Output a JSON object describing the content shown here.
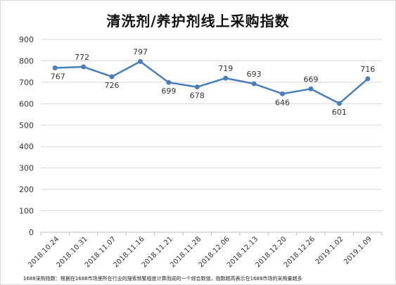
{
  "chart_data": {
    "type": "line",
    "title": "清洗剂/养护剂线上采购指数",
    "xlabel": "",
    "ylabel": "",
    "categories": [
      "2018.10.24",
      "2018.10.31",
      "2018.11.07",
      "2018.11.16",
      "2018.11.21",
      "2018.11.28",
      "2018.12.06",
      "2018.12.13",
      "2018.12.20",
      "2018.12.26",
      "2019.1.02",
      "2019.1.09"
    ],
    "values": [
      767,
      772,
      726,
      797,
      699,
      678,
      719,
      693,
      646,
      669,
      601,
      716
    ],
    "data_labels": [
      "767",
      "772",
      "726",
      "797",
      "699",
      "678",
      "719",
      "693",
      "646",
      "669",
      "601",
      "716"
    ],
    "ylim": [
      0,
      900
    ],
    "yticks": [
      0,
      100,
      200,
      300,
      400,
      500,
      600,
      700,
      800,
      900
    ],
    "grid": true,
    "line_color": "#4a7ebb"
  },
  "footnote": "1688采购指数：根据在1688市场里所在行业的搜索频繁程度计算而成的一个综合数值，指数越高表示在1688市场的采购量越多"
}
